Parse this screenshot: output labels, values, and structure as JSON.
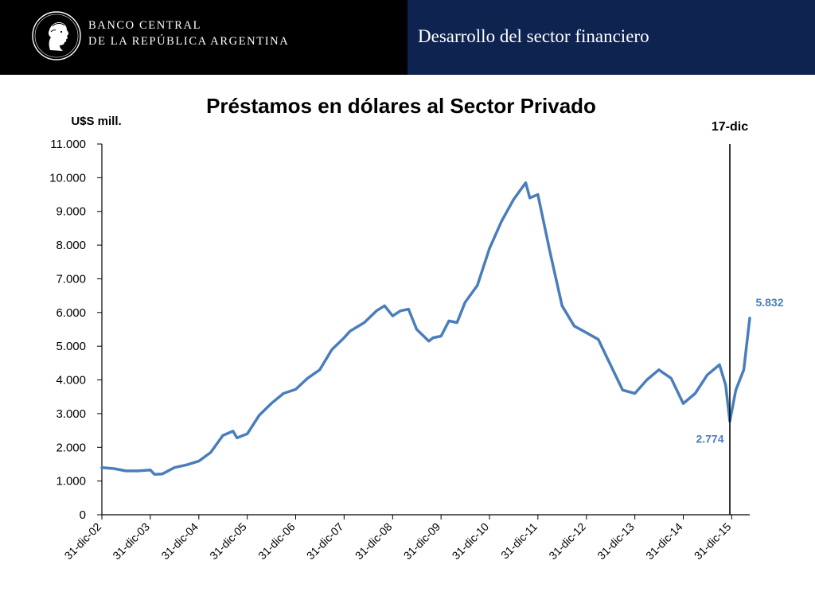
{
  "header": {
    "bank_name_line1": "BANCO CENTRAL",
    "bank_name_line2": "DE LA REPÚBLICA ARGENTINA",
    "section_title": "Desarrollo del sector financiero",
    "logo_icon": "effigy-medallion-icon",
    "colors": {
      "left_bg": "#000000",
      "right_bg": "#0f2350",
      "text": "#ffffff"
    }
  },
  "chart_data": {
    "type": "line",
    "title": "Préstamos en dólares al Sector Privado",
    "ylabel": "U$S mill.",
    "xlabel": "",
    "ylim": [
      0,
      11000
    ],
    "yticks": [
      0,
      1000,
      2000,
      3000,
      4000,
      5000,
      6000,
      7000,
      8000,
      9000,
      10000,
      11000
    ],
    "ytick_labels": [
      "0",
      "1.000",
      "2.000",
      "3.000",
      "4.000",
      "5.000",
      "6.000",
      "7.000",
      "8.000",
      "9.000",
      "10.000",
      "11.000"
    ],
    "xlim": [
      "2002-12-31",
      "2016-05-15"
    ],
    "xticks": [
      "2002-12-31",
      "2003-12-31",
      "2004-12-31",
      "2005-12-31",
      "2006-12-31",
      "2007-12-31",
      "2008-12-31",
      "2009-12-31",
      "2010-12-31",
      "2011-12-31",
      "2012-12-31",
      "2013-12-31",
      "2014-12-31",
      "2015-12-31"
    ],
    "xtick_labels": [
      "31-dic-02",
      "31-dic-03",
      "31-dic-04",
      "31-dic-05",
      "31-dic-06",
      "31-dic-07",
      "31-dic-08",
      "31-dic-09",
      "31-dic-10",
      "31-dic-11",
      "31-dic-12",
      "31-dic-13",
      "31-dic-14",
      "31-dic-15"
    ],
    "grid": false,
    "line_color": "#4a7ebb",
    "series": [
      {
        "x": [
          "2002-12-31",
          "2003-03-31",
          "2003-06-30",
          "2003-09-30",
          "2003-12-31",
          "2004-01-31",
          "2004-03-31",
          "2004-06-30",
          "2004-09-30",
          "2004-12-31",
          "2005-03-31",
          "2005-06-30",
          "2005-09-15",
          "2005-10-15",
          "2005-12-31",
          "2006-03-31",
          "2006-06-30",
          "2006-09-30",
          "2006-12-31",
          "2007-03-31",
          "2007-06-30",
          "2007-09-30",
          "2007-12-31",
          "2008-02-15",
          "2008-05-31",
          "2008-08-31",
          "2008-10-31",
          "2008-12-31",
          "2009-02-28",
          "2009-04-30",
          "2009-06-30",
          "2009-09-30",
          "2009-10-31",
          "2009-12-31",
          "2010-02-28",
          "2010-04-30",
          "2010-06-30",
          "2010-09-30",
          "2010-12-31",
          "2011-03-31",
          "2011-06-30",
          "2011-09-30",
          "2011-10-31",
          "2011-12-31",
          "2012-03-31",
          "2012-06-30",
          "2012-09-30",
          "2012-12-31",
          "2013-03-31",
          "2013-06-30",
          "2013-09-30",
          "2013-12-31",
          "2014-03-31",
          "2014-06-30",
          "2014-09-30",
          "2014-12-31",
          "2015-03-31",
          "2015-06-30",
          "2015-09-30",
          "2015-11-15",
          "2015-12-17",
          "2016-01-31",
          "2016-03-31",
          "2016-05-15"
        ],
        "y": [
          1400,
          1370,
          1300,
          1300,
          1330,
          1200,
          1210,
          1400,
          1480,
          1590,
          1850,
          2350,
          2480,
          2280,
          2400,
          2950,
          3300,
          3600,
          3720,
          4050,
          4300,
          4900,
          5250,
          5450,
          5700,
          6050,
          6200,
          5900,
          6050,
          6100,
          5500,
          5150,
          5250,
          5300,
          5750,
          5700,
          6300,
          6800,
          7900,
          8700,
          9350,
          9850,
          9400,
          9500,
          7800,
          6200,
          5600,
          5400,
          5200,
          4450,
          3700,
          3600,
          4000,
          4300,
          4050,
          3300,
          3600,
          4150,
          4450,
          3850,
          2774,
          3700,
          4300,
          5832
        ]
      }
    ],
    "annotations": [
      {
        "label": "17-dic",
        "kind": "vertical-line",
        "x": "2015-12-17"
      },
      {
        "label": "2.774",
        "kind": "value-label",
        "x": "2015-12-17",
        "y": 2774
      },
      {
        "label": "5.832",
        "kind": "value-label",
        "x": "2016-05-15",
        "y": 5832
      }
    ]
  }
}
